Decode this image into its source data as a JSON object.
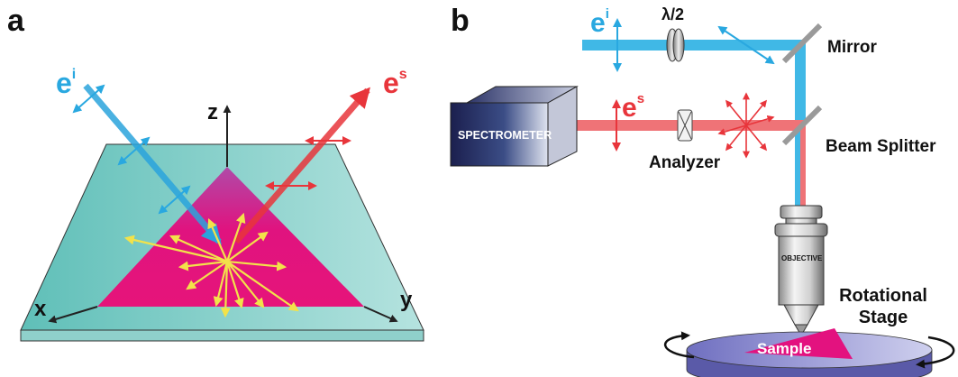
{
  "panel_a": {
    "label": "a",
    "incident_field": "e",
    "incident_sup": "i",
    "scattered_field": "e",
    "scattered_sup": "s",
    "axis_z": "z",
    "axis_x": "x",
    "axis_y": "y"
  },
  "panel_b": {
    "label": "b",
    "incident_field": "e",
    "incident_sup": "i",
    "scattered_field": "e",
    "scattered_sup": "s",
    "half_wave_plate": "λ/2",
    "mirror": "Mirror",
    "beam_splitter": "Beam Splitter",
    "spectrometer": "SPECTROMETER",
    "analyzer": "Analyzer",
    "objective": "OBJECTIVE",
    "rotational_stage_line1": "Rotational",
    "rotational_stage_line2": "Stage",
    "sample": "Sample"
  },
  "colors": {
    "incident_beam": "#40b8e6",
    "scattered_beam": "#ef7377",
    "substrate": "#7ccbc5",
    "flake": "#e3127f",
    "polarization_arrows": "#f2e24a"
  }
}
